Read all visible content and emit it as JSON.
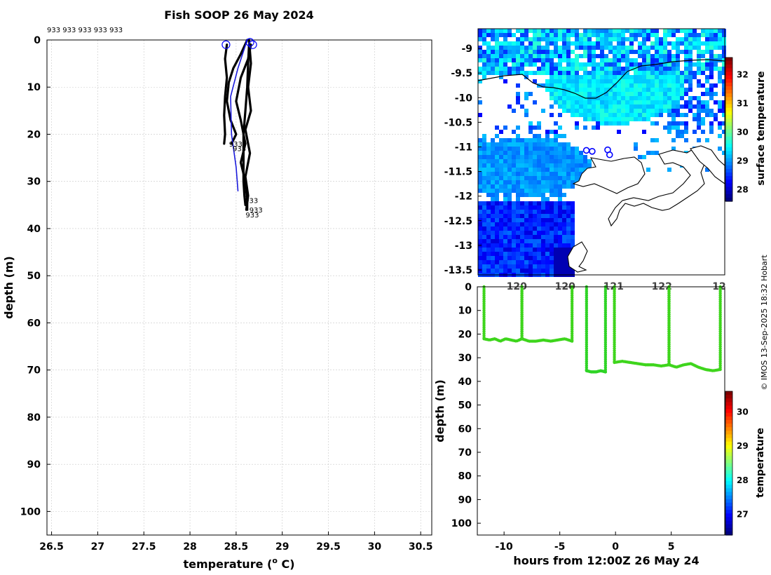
{
  "title": "Fish SOOP 26 May 2024",
  "credit": "© IMOS 13-Sep-2025 18:32 Hobart",
  "profile_label": "933",
  "colors": {
    "profile": "#000000",
    "mean_profile": "#1a1adc",
    "grid": "#c8c8c8",
    "coast": "#000000",
    "track": "#0000ff"
  },
  "chart_data": [
    {
      "type": "line",
      "name": "temperature-profiles",
      "title": "Fish SOOP 26 May 2024",
      "xlabel": "temperature (° C)",
      "xlabel_main": "temperature (",
      "xlabel_sup": "o",
      "xlabel_tail": " C)",
      "ylabel": "depth (m)",
      "xlim": [
        26.45,
        30.62
      ],
      "ylim": [
        105,
        0
      ],
      "xticks": [
        "26.5",
        "27",
        "27.5",
        "28",
        "28.5",
        "29",
        "29.5",
        "30",
        "30.5"
      ],
      "yticks": [
        "0",
        "10",
        "20",
        "30",
        "40",
        "50",
        "60",
        "70",
        "80",
        "90",
        "100"
      ],
      "top_labels": "933 933 933 933 933",
      "grid": true,
      "series": [
        {
          "name": "933-a",
          "points": [
            [
              28.4,
              1
            ],
            [
              28.38,
              4
            ],
            [
              28.4,
              8
            ],
            [
              28.38,
              12
            ],
            [
              28.37,
              16
            ],
            [
              28.38,
              20
            ],
            [
              28.37,
              22
            ]
          ]
        },
        {
          "name": "933-b",
          "points": [
            [
              28.62,
              0
            ],
            [
              28.55,
              3
            ],
            [
              28.47,
              6
            ],
            [
              28.42,
              9
            ],
            [
              28.4,
              13
            ],
            [
              28.44,
              17
            ],
            [
              28.5,
              20
            ],
            [
              28.45,
              22
            ]
          ]
        },
        {
          "name": "933-c",
          "points": [
            [
              28.64,
              1
            ],
            [
              28.63,
              5
            ],
            [
              28.62,
              10
            ],
            [
              28.6,
              15
            ],
            [
              28.58,
              20
            ],
            [
              28.58,
              25
            ],
            [
              28.58,
              30
            ],
            [
              28.59,
              33
            ],
            [
              28.6,
              35
            ]
          ]
        },
        {
          "name": "933-d",
          "points": [
            [
              28.66,
              1
            ],
            [
              28.63,
              4
            ],
            [
              28.55,
              8
            ],
            [
              28.5,
              13
            ],
            [
              28.55,
              17
            ],
            [
              28.6,
              22
            ],
            [
              28.55,
              26
            ],
            [
              28.6,
              30
            ],
            [
              28.62,
              34
            ],
            [
              28.62,
              36
            ]
          ]
        },
        {
          "name": "933-e",
          "points": [
            [
              28.64,
              0
            ],
            [
              28.66,
              5
            ],
            [
              28.63,
              10
            ],
            [
              28.66,
              15
            ],
            [
              28.6,
              19
            ],
            [
              28.65,
              24
            ],
            [
              28.6,
              29
            ],
            [
              28.63,
              33
            ],
            [
              28.61,
              36
            ]
          ]
        },
        {
          "name": "mean",
          "points": [
            [
              28.62,
              0
            ],
            [
              28.52,
              6
            ],
            [
              28.44,
              12
            ],
            [
              28.45,
              20
            ],
            [
              28.5,
              27
            ],
            [
              28.52,
              32
            ]
          ]
        }
      ],
      "start_markers": [
        [
          28.39,
          1
        ],
        [
          28.65,
          0.5
        ],
        [
          28.68,
          1
        ]
      ],
      "end_labels": [
        {
          "text": "933",
          "t": 28.4,
          "d": 22
        },
        {
          "text": "933",
          "t": 28.44,
          "d": 23
        },
        {
          "text": "933",
          "t": 28.57,
          "d": 34
        },
        {
          "text": "933",
          "t": 28.62,
          "d": 36
        },
        {
          "text": "933",
          "t": 28.58,
          "d": 37
        }
      ]
    },
    {
      "type": "heatmap",
      "name": "sst-map",
      "xlim": [
        119.3,
        121.85
      ],
      "ylim": [
        -13.6,
        -8.6
      ],
      "xticks": [
        "120",
        "120",
        "121",
        "122",
        "12"
      ],
      "yticks": [
        "-9",
        "-9.5",
        "-10",
        "-10.5",
        "-11",
        "-11.5",
        "-12",
        "-12.5",
        "-13",
        "-13.5"
      ],
      "colorbar_label": "surface temperature",
      "colorbar_ticks": [
        "32",
        "31",
        "30",
        "29",
        "28"
      ],
      "colorbar_range": [
        27.6,
        32.6
      ],
      "track_points": [
        [
          120.42,
          -11.07
        ],
        [
          120.48,
          -11.09
        ],
        [
          120.64,
          -11.06
        ],
        [
          120.66,
          -11.16
        ]
      ]
    },
    {
      "type": "scatter",
      "name": "depth-time",
      "xlabel": "hours from 12:00Z 26 May 24",
      "ylabel": "depth (m)",
      "xlim": [
        -12.4,
        9.8
      ],
      "ylim": [
        105,
        0
      ],
      "xticks": [
        "-10",
        "-5",
        "0",
        "5"
      ],
      "yticks": [
        "0",
        "10",
        "20",
        "30",
        "40",
        "50",
        "60",
        "70",
        "80",
        "90",
        "100"
      ],
      "colorbar_label": "temperature",
      "colorbar_ticks": [
        "30",
        "29",
        "28",
        "27"
      ],
      "colorbar_range": [
        26.4,
        30.6
      ],
      "point_color_value": 28.5,
      "segments": [
        {
          "t": [
            -11.8,
            -8.4
          ],
          "bottom": [
            22,
            22.5,
            22,
            23,
            22,
            22.5,
            23,
            22
          ],
          "color": "#3ed51c"
        },
        {
          "t": [
            -8.4,
            -3.9
          ],
          "bottom": [
            22,
            23,
            23,
            22.5,
            23,
            22.5,
            22,
            23
          ],
          "color": "#3ed51c"
        },
        {
          "t": [
            -2.6,
            -0.9
          ],
          "bottom": [
            35.5,
            36,
            36,
            35.5,
            36
          ],
          "color": "#2fd426"
        },
        {
          "t": [
            -0.1,
            4.8
          ],
          "bottom": [
            32,
            31.5,
            32,
            32.5,
            33,
            33,
            33.5,
            33
          ],
          "color": "#3ed51c"
        },
        {
          "t": [
            4.8,
            9.4
          ],
          "bottom": [
            33,
            34,
            33,
            32.5,
            34,
            35,
            35.5,
            35
          ],
          "color": "#3ed51c"
        }
      ]
    }
  ]
}
